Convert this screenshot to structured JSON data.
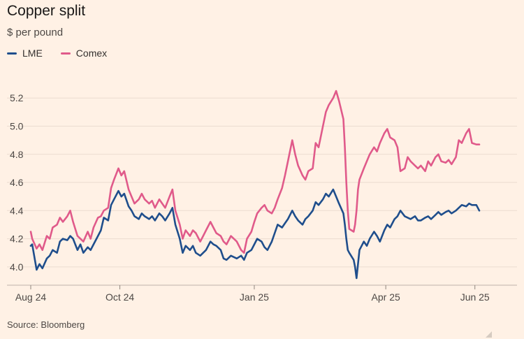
{
  "header": {
    "title": "Copper split",
    "subtitle": "$ per pound"
  },
  "legend": [
    {
      "name": "LME",
      "color": "#1F4E8C"
    },
    {
      "name": "Comex",
      "color": "#E05A8A"
    }
  ],
  "footer": {
    "source": "Source: Bloomberg"
  },
  "chart_data": {
    "type": "line",
    "ylim": [
      3.9,
      5.35
    ],
    "yticks": [
      4.0,
      4.2,
      4.4,
      4.6,
      4.8,
      5.0,
      5.2
    ],
    "ytick_labels": [
      "4.0",
      "4.2",
      "4.4",
      "4.6",
      "4.8",
      "5.0",
      "5.2"
    ],
    "xlim": [
      "2024-08-01",
      "2025-06-04"
    ],
    "xticks": [
      {
        "date": "2024-08-01",
        "label": "Aug 24"
      },
      {
        "date": "2024-10-01",
        "label": "Oct 24"
      },
      {
        "date": "2025-01-01",
        "label": "Jan 25"
      },
      {
        "date": "2025-04-01",
        "label": "Apr 25"
      },
      {
        "date": "2025-06-01",
        "label": "Jun 25"
      }
    ],
    "grid": true,
    "legend_position": "top-left",
    "series": [
      {
        "name": "LME",
        "color": "#1F4E8C",
        "points": [
          [
            "2024-08-01",
            4.15
          ],
          [
            "2024-08-02",
            4.16
          ],
          [
            "2024-08-05",
            3.98
          ],
          [
            "2024-08-07",
            4.02
          ],
          [
            "2024-08-09",
            3.99
          ],
          [
            "2024-08-12",
            4.06
          ],
          [
            "2024-08-14",
            4.08
          ],
          [
            "2024-08-16",
            4.12
          ],
          [
            "2024-08-19",
            4.1
          ],
          [
            "2024-08-21",
            4.18
          ],
          [
            "2024-08-23",
            4.2
          ],
          [
            "2024-08-26",
            4.19
          ],
          [
            "2024-08-28",
            4.22
          ],
          [
            "2024-08-30",
            4.2
          ],
          [
            "2024-09-02",
            4.12
          ],
          [
            "2024-09-04",
            4.16
          ],
          [
            "2024-09-06",
            4.1
          ],
          [
            "2024-09-09",
            4.14
          ],
          [
            "2024-09-11",
            4.12
          ],
          [
            "2024-09-13",
            4.16
          ],
          [
            "2024-09-16",
            4.22
          ],
          [
            "2024-09-18",
            4.26
          ],
          [
            "2024-09-20",
            4.35
          ],
          [
            "2024-09-23",
            4.33
          ],
          [
            "2024-09-25",
            4.44
          ],
          [
            "2024-09-27",
            4.48
          ],
          [
            "2024-09-30",
            4.54
          ],
          [
            "2024-10-02",
            4.5
          ],
          [
            "2024-10-04",
            4.52
          ],
          [
            "2024-10-07",
            4.43
          ],
          [
            "2024-10-09",
            4.4
          ],
          [
            "2024-10-11",
            4.36
          ],
          [
            "2024-10-14",
            4.34
          ],
          [
            "2024-10-16",
            4.38
          ],
          [
            "2024-10-18",
            4.36
          ],
          [
            "2024-10-21",
            4.34
          ],
          [
            "2024-10-23",
            4.36
          ],
          [
            "2024-10-25",
            4.33
          ],
          [
            "2024-10-28",
            4.38
          ],
          [
            "2024-10-30",
            4.36
          ],
          [
            "2024-11-01",
            4.33
          ],
          [
            "2024-11-04",
            4.38
          ],
          [
            "2024-11-06",
            4.42
          ],
          [
            "2024-11-08",
            4.3
          ],
          [
            "2024-11-11",
            4.2
          ],
          [
            "2024-11-13",
            4.1
          ],
          [
            "2024-11-15",
            4.15
          ],
          [
            "2024-11-18",
            4.12
          ],
          [
            "2024-11-20",
            4.15
          ],
          [
            "2024-11-22",
            4.1
          ],
          [
            "2024-11-25",
            4.08
          ],
          [
            "2024-11-27",
            4.1
          ],
          [
            "2024-11-29",
            4.12
          ],
          [
            "2024-12-02",
            4.18
          ],
          [
            "2024-12-04",
            4.16
          ],
          [
            "2024-12-06",
            4.15
          ],
          [
            "2024-12-09",
            4.12
          ],
          [
            "2024-12-11",
            4.06
          ],
          [
            "2024-12-13",
            4.05
          ],
          [
            "2024-12-16",
            4.08
          ],
          [
            "2024-12-18",
            4.07
          ],
          [
            "2024-12-20",
            4.06
          ],
          [
            "2024-12-23",
            4.08
          ],
          [
            "2024-12-25",
            4.05
          ],
          [
            "2024-12-27",
            4.1
          ],
          [
            "2024-12-30",
            4.12
          ],
          [
            "2025-01-01",
            4.16
          ],
          [
            "2025-01-03",
            4.2
          ],
          [
            "2025-01-06",
            4.18
          ],
          [
            "2025-01-08",
            4.14
          ],
          [
            "2025-01-10",
            4.12
          ],
          [
            "2025-01-13",
            4.18
          ],
          [
            "2025-01-15",
            4.24
          ],
          [
            "2025-01-17",
            4.3
          ],
          [
            "2025-01-20",
            4.28
          ],
          [
            "2025-01-22",
            4.31
          ],
          [
            "2025-01-24",
            4.34
          ],
          [
            "2025-01-27",
            4.4
          ],
          [
            "2025-01-29",
            4.36
          ],
          [
            "2025-01-31",
            4.33
          ],
          [
            "2025-02-03",
            4.3
          ],
          [
            "2025-02-05",
            4.34
          ],
          [
            "2025-02-07",
            4.36
          ],
          [
            "2025-02-10",
            4.4
          ],
          [
            "2025-02-12",
            4.46
          ],
          [
            "2025-02-14",
            4.44
          ],
          [
            "2025-02-17",
            4.48
          ],
          [
            "2025-02-19",
            4.52
          ],
          [
            "2025-02-21",
            4.5
          ],
          [
            "2025-02-24",
            4.55
          ],
          [
            "2025-02-26",
            4.5
          ],
          [
            "2025-02-28",
            4.45
          ],
          [
            "2025-03-03",
            4.38
          ],
          [
            "2025-03-04",
            4.3
          ],
          [
            "2025-03-05",
            4.2
          ],
          [
            "2025-03-06",
            4.12
          ],
          [
            "2025-03-07",
            4.1
          ],
          [
            "2025-03-10",
            4.05
          ],
          [
            "2025-03-11",
            4.0
          ],
          [
            "2025-03-12",
            3.92
          ],
          [
            "2025-03-13",
            4.02
          ],
          [
            "2025-03-14",
            4.12
          ],
          [
            "2025-03-17",
            4.18
          ],
          [
            "2025-03-19",
            4.15
          ],
          [
            "2025-03-21",
            4.2
          ],
          [
            "2025-03-24",
            4.25
          ],
          [
            "2025-03-26",
            4.22
          ],
          [
            "2025-03-28",
            4.18
          ],
          [
            "2025-03-31",
            4.26
          ],
          [
            "2025-04-02",
            4.3
          ],
          [
            "2025-04-04",
            4.28
          ],
          [
            "2025-04-07",
            4.34
          ],
          [
            "2025-04-09",
            4.36
          ],
          [
            "2025-04-11",
            4.4
          ],
          [
            "2025-04-14",
            4.36
          ],
          [
            "2025-04-16",
            4.35
          ],
          [
            "2025-04-18",
            4.34
          ],
          [
            "2025-04-21",
            4.36
          ],
          [
            "2025-04-23",
            4.33
          ],
          [
            "2025-04-25",
            4.33
          ],
          [
            "2025-04-28",
            4.35
          ],
          [
            "2025-04-30",
            4.36
          ],
          [
            "2025-05-02",
            4.34
          ],
          [
            "2025-05-05",
            4.37
          ],
          [
            "2025-05-07",
            4.39
          ],
          [
            "2025-05-09",
            4.37
          ],
          [
            "2025-05-12",
            4.39
          ],
          [
            "2025-05-14",
            4.4
          ],
          [
            "2025-05-16",
            4.38
          ],
          [
            "2025-05-19",
            4.4
          ],
          [
            "2025-05-21",
            4.42
          ],
          [
            "2025-05-23",
            4.44
          ],
          [
            "2025-05-26",
            4.43
          ],
          [
            "2025-05-28",
            4.45
          ],
          [
            "2025-05-30",
            4.44
          ],
          [
            "2025-06-02",
            4.44
          ],
          [
            "2025-06-04",
            4.4
          ]
        ]
      },
      {
        "name": "Comex",
        "color": "#E05A8A",
        "points": [
          [
            "2024-08-01",
            4.25
          ],
          [
            "2024-08-02",
            4.2
          ],
          [
            "2024-08-05",
            4.13
          ],
          [
            "2024-08-07",
            4.16
          ],
          [
            "2024-08-09",
            4.12
          ],
          [
            "2024-08-12",
            4.22
          ],
          [
            "2024-08-14",
            4.2
          ],
          [
            "2024-08-16",
            4.28
          ],
          [
            "2024-08-19",
            4.3
          ],
          [
            "2024-08-21",
            4.35
          ],
          [
            "2024-08-23",
            4.32
          ],
          [
            "2024-08-26",
            4.36
          ],
          [
            "2024-08-28",
            4.4
          ],
          [
            "2024-08-30",
            4.32
          ],
          [
            "2024-09-02",
            4.22
          ],
          [
            "2024-09-04",
            4.2
          ],
          [
            "2024-09-06",
            4.18
          ],
          [
            "2024-09-09",
            4.25
          ],
          [
            "2024-09-11",
            4.2
          ],
          [
            "2024-09-13",
            4.28
          ],
          [
            "2024-09-16",
            4.35
          ],
          [
            "2024-09-18",
            4.36
          ],
          [
            "2024-09-20",
            4.4
          ],
          [
            "2024-09-23",
            4.42
          ],
          [
            "2024-09-25",
            4.56
          ],
          [
            "2024-09-27",
            4.62
          ],
          [
            "2024-09-30",
            4.7
          ],
          [
            "2024-10-02",
            4.65
          ],
          [
            "2024-10-04",
            4.68
          ],
          [
            "2024-10-07",
            4.55
          ],
          [
            "2024-10-09",
            4.5
          ],
          [
            "2024-10-11",
            4.45
          ],
          [
            "2024-10-14",
            4.48
          ],
          [
            "2024-10-16",
            4.52
          ],
          [
            "2024-10-18",
            4.48
          ],
          [
            "2024-10-21",
            4.45
          ],
          [
            "2024-10-23",
            4.47
          ],
          [
            "2024-10-25",
            4.42
          ],
          [
            "2024-10-28",
            4.48
          ],
          [
            "2024-10-30",
            4.45
          ],
          [
            "2024-11-01",
            4.42
          ],
          [
            "2024-11-04",
            4.5
          ],
          [
            "2024-11-06",
            4.55
          ],
          [
            "2024-11-08",
            4.4
          ],
          [
            "2024-11-11",
            4.3
          ],
          [
            "2024-11-13",
            4.2
          ],
          [
            "2024-11-15",
            4.26
          ],
          [
            "2024-11-18",
            4.22
          ],
          [
            "2024-11-20",
            4.26
          ],
          [
            "2024-11-22",
            4.24
          ],
          [
            "2024-11-25",
            4.18
          ],
          [
            "2024-11-27",
            4.22
          ],
          [
            "2024-11-29",
            4.26
          ],
          [
            "2024-12-02",
            4.32
          ],
          [
            "2024-12-04",
            4.28
          ],
          [
            "2024-12-06",
            4.24
          ],
          [
            "2024-12-09",
            4.22
          ],
          [
            "2024-12-11",
            4.18
          ],
          [
            "2024-12-13",
            4.16
          ],
          [
            "2024-12-16",
            4.22
          ],
          [
            "2024-12-18",
            4.2
          ],
          [
            "2024-12-20",
            4.18
          ],
          [
            "2024-12-23",
            4.12
          ],
          [
            "2024-12-25",
            4.1
          ],
          [
            "2024-12-27",
            4.2
          ],
          [
            "2024-12-30",
            4.25
          ],
          [
            "2025-01-01",
            4.32
          ],
          [
            "2025-01-03",
            4.38
          ],
          [
            "2025-01-06",
            4.42
          ],
          [
            "2025-01-08",
            4.44
          ],
          [
            "2025-01-10",
            4.4
          ],
          [
            "2025-01-13",
            4.38
          ],
          [
            "2025-01-15",
            4.42
          ],
          [
            "2025-01-17",
            4.48
          ],
          [
            "2025-01-20",
            4.56
          ],
          [
            "2025-01-22",
            4.65
          ],
          [
            "2025-01-24",
            4.75
          ],
          [
            "2025-01-27",
            4.9
          ],
          [
            "2025-01-29",
            4.8
          ],
          [
            "2025-01-31",
            4.72
          ],
          [
            "2025-02-03",
            4.65
          ],
          [
            "2025-02-05",
            4.62
          ],
          [
            "2025-02-07",
            4.68
          ],
          [
            "2025-02-10",
            4.7
          ],
          [
            "2025-02-12",
            4.88
          ],
          [
            "2025-02-14",
            4.85
          ],
          [
            "2025-02-17",
            5.0
          ],
          [
            "2025-02-19",
            5.1
          ],
          [
            "2025-02-21",
            5.15
          ],
          [
            "2025-02-24",
            5.2
          ],
          [
            "2025-02-26",
            5.25
          ],
          [
            "2025-02-28",
            5.18
          ],
          [
            "2025-03-03",
            5.05
          ],
          [
            "2025-03-04",
            4.85
          ],
          [
            "2025-03-05",
            4.6
          ],
          [
            "2025-03-06",
            4.4
          ],
          [
            "2025-03-07",
            4.27
          ],
          [
            "2025-03-10",
            4.25
          ],
          [
            "2025-03-11",
            4.3
          ],
          [
            "2025-03-12",
            4.4
          ],
          [
            "2025-03-13",
            4.55
          ],
          [
            "2025-03-14",
            4.62
          ],
          [
            "2025-03-17",
            4.7
          ],
          [
            "2025-03-19",
            4.75
          ],
          [
            "2025-03-21",
            4.8
          ],
          [
            "2025-03-24",
            4.85
          ],
          [
            "2025-03-26",
            4.82
          ],
          [
            "2025-03-28",
            4.88
          ],
          [
            "2025-03-31",
            4.95
          ],
          [
            "2025-04-02",
            4.98
          ],
          [
            "2025-04-04",
            4.92
          ],
          [
            "2025-04-07",
            4.9
          ],
          [
            "2025-04-09",
            4.85
          ],
          [
            "2025-04-11",
            4.68
          ],
          [
            "2025-04-14",
            4.7
          ],
          [
            "2025-04-16",
            4.78
          ],
          [
            "2025-04-18",
            4.75
          ],
          [
            "2025-04-21",
            4.72
          ],
          [
            "2025-04-23",
            4.7
          ],
          [
            "2025-04-25",
            4.72
          ],
          [
            "2025-04-28",
            4.68
          ],
          [
            "2025-04-30",
            4.75
          ],
          [
            "2025-05-02",
            4.72
          ],
          [
            "2025-05-05",
            4.78
          ],
          [
            "2025-05-07",
            4.8
          ],
          [
            "2025-05-09",
            4.75
          ],
          [
            "2025-05-12",
            4.74
          ],
          [
            "2025-05-14",
            4.76
          ],
          [
            "2025-05-16",
            4.73
          ],
          [
            "2025-05-19",
            4.78
          ],
          [
            "2025-05-21",
            4.9
          ],
          [
            "2025-05-23",
            4.88
          ],
          [
            "2025-05-26",
            4.95
          ],
          [
            "2025-05-28",
            4.98
          ],
          [
            "2025-05-30",
            4.88
          ],
          [
            "2025-06-02",
            4.87
          ],
          [
            "2025-06-04",
            4.87
          ]
        ]
      }
    ]
  }
}
